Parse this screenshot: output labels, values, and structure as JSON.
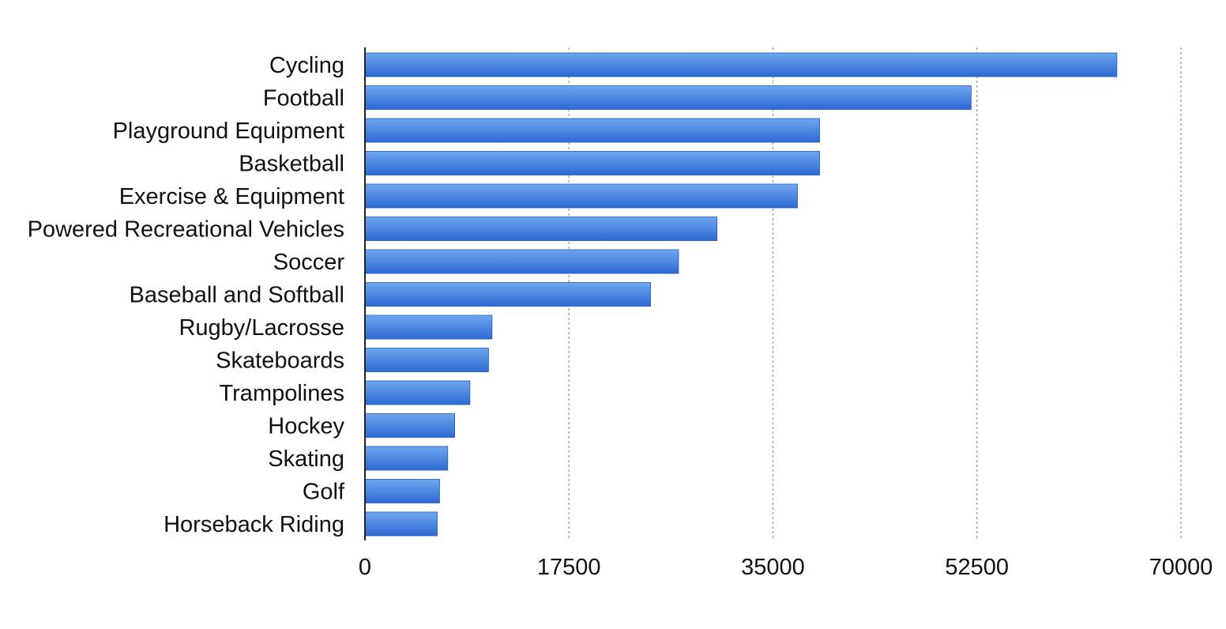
{
  "chart_data": {
    "type": "bar",
    "orientation": "horizontal",
    "title": "",
    "xlabel": "",
    "ylabel": "",
    "categories": [
      "Cycling",
      "Football",
      "Playground Equipment",
      "Basketball",
      "Exercise & Equipment",
      "Powered Recreational Vehicles",
      "Soccer",
      "Baseball and Softball",
      "Rugby/Lacrosse",
      "Skateboards",
      "Trampolines",
      "Hockey",
      "Skating",
      "Golf",
      "Horseback Riding"
    ],
    "values": [
      64500,
      52000,
      39000,
      39000,
      37100,
      30200,
      26900,
      24500,
      10900,
      10600,
      9000,
      7700,
      7100,
      6400,
      6200
    ],
    "xlim": [
      0,
      70000
    ],
    "xticks": [
      "0",
      "17500",
      "35000",
      "52500",
      "70000"
    ],
    "grid": true,
    "legend": "none",
    "colors": {
      "bar_top": "#6ea6ee",
      "bar_bottom": "#2d6ad3",
      "bar_edge": "#245bbd",
      "grid": "#9a9a9a",
      "axis": "#222222",
      "text": "#111111"
    }
  }
}
